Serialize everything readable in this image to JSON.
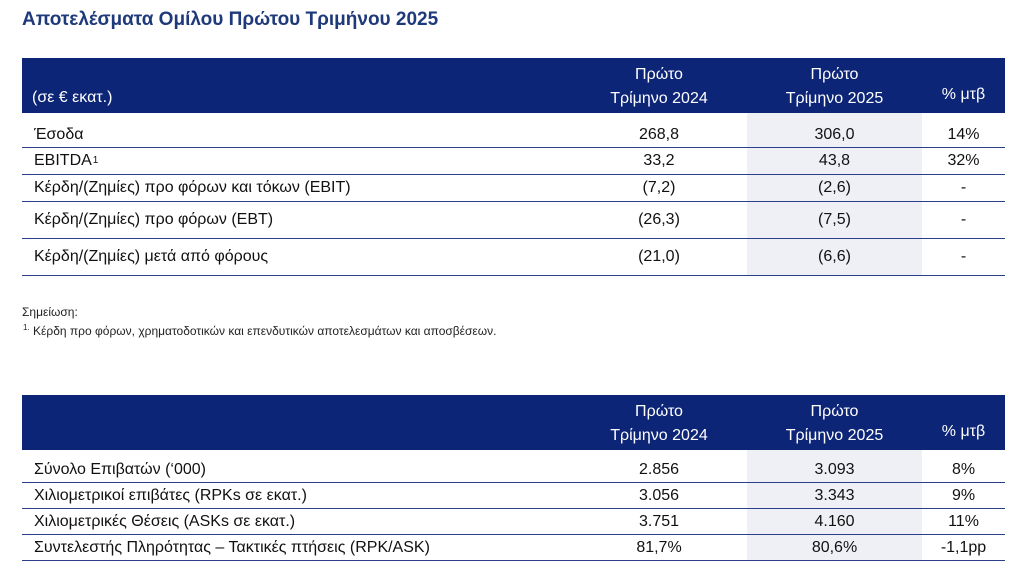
{
  "title": "Αποτελέσματα Ομίλου Πρώτου Τριμήνου 2025",
  "table1": {
    "unit_label": "(σε € εκατ.)",
    "col1": [
      "Πρώτο",
      "Τρίμηνο 2024"
    ],
    "col2": [
      "Πρώτο",
      "Τρίμηνο 2025"
    ],
    "col3": "% μτβ",
    "rows": [
      {
        "label": "Έσοδα",
        "sup": "",
        "v2024": "268,8",
        "v2025": "306,0",
        "change": "14%"
      },
      {
        "label": "EBITDA",
        "sup": "1",
        "v2024": "33,2",
        "v2025": "43,8",
        "change": "32%"
      },
      {
        "label": "Κέρδη/(Ζημίες) προ φόρων και τόκων (EBIT)",
        "sup": "",
        "v2024": "(7,2)",
        "v2025": "(2,6)",
        "change": "-"
      },
      {
        "label": "Κέρδη/(Ζημίες) προ φόρων (EBT)",
        "sup": "",
        "v2024": "(26,3)",
        "v2025": "(7,5)",
        "change": "-"
      },
      {
        "label": "Κέρδη/(Ζημίες) μετά από φόρους",
        "sup": "",
        "v2024": "(21,0)",
        "v2025": "(6,6)",
        "change": "-"
      }
    ]
  },
  "note": {
    "heading": "Σημείωση:",
    "marker": "1.",
    "text": "Κέρδη προ φόρων, χρηματοδοτικών και επενδυτικών αποτελεσμάτων και αποσβέσεων."
  },
  "table2": {
    "col1": [
      "Πρώτο",
      "Τρίμηνο 2024"
    ],
    "col2": [
      "Πρώτο",
      "Τρίμηνο 2025"
    ],
    "col3": "% μτβ",
    "rows": [
      {
        "label": "Σύνολο Επιβατών (‘000)",
        "v2024": "2.856",
        "v2025": "3.093",
        "change": "8%"
      },
      {
        "label": "Χιλιομετρικοί επιβάτες (RPKs σε εκατ.)",
        "v2024": "3.056",
        "v2025": "3.343",
        "change": "9%"
      },
      {
        "label": "Χιλιομετρικές Θέσεις (ASKs σε εκατ.)",
        "v2024": "3.751",
        "v2025": "4.160",
        "change": "11%"
      },
      {
        "label": "Συντελεστής Πληρότητας – Τακτικές πτήσεις (RPK/ASK)",
        "v2024": "81,7%",
        "v2025": "80,6%",
        "change": "-1,1pp"
      }
    ]
  }
}
